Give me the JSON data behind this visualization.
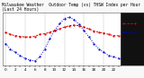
{
  "title": "Milwaukee Weather  Outdoor Temp (vs) THSW Index per Hour (Last 24 Hours)",
  "hours": [
    0,
    1,
    2,
    3,
    4,
    5,
    6,
    7,
    8,
    9,
    10,
    11,
    12,
    13,
    14,
    15,
    16,
    17,
    18,
    19,
    20,
    21,
    22,
    23
  ],
  "temp": [
    55,
    52,
    50,
    49,
    48,
    48,
    49,
    52,
    53,
    55,
    58,
    60,
    63,
    65,
    66,
    65,
    63,
    60,
    57,
    55,
    54,
    52,
    50,
    50
  ],
  "thsw": [
    38,
    30,
    25,
    20,
    16,
    13,
    12,
    18,
    30,
    45,
    58,
    68,
    76,
    78,
    74,
    67,
    58,
    48,
    38,
    30,
    25,
    20,
    18,
    16
  ],
  "temp_color": "#dd0000",
  "thsw_color": "#0000cc",
  "bg_color": "#f8f8f8",
  "plot_bg": "#ffffff",
  "grid_color": "#888888",
  "legend_bg": "#000000",
  "ylim": [
    5,
    85
  ],
  "ytick_values": [
    10,
    20,
    30,
    40,
    50,
    60,
    70,
    80
  ],
  "ylabel_fontsize": 3.2,
  "xlabel_fontsize": 3.0,
  "title_fontsize": 3.3,
  "linewidth": 0.7,
  "markersize": 1.2,
  "figure_width": 1.6,
  "figure_height": 0.87,
  "dpi": 100
}
